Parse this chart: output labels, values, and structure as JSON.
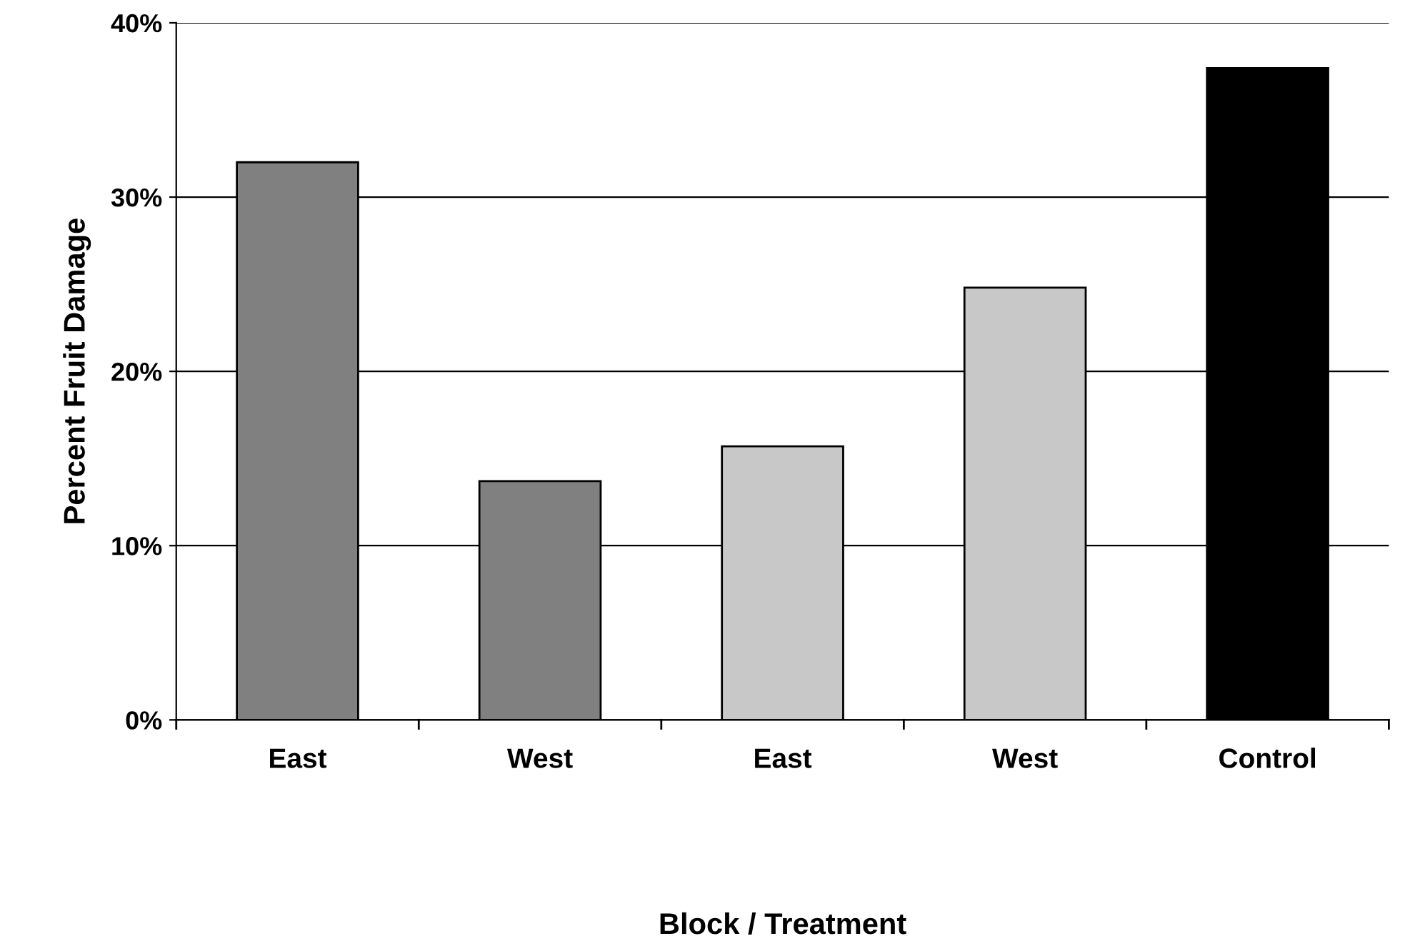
{
  "chart_data": {
    "type": "bar",
    "xlabel": "Block / Treatment",
    "ylabel": "Percent Fruit Damage",
    "categories": [
      "East",
      "West",
      "East",
      "West",
      "Control"
    ],
    "values": [
      32.0,
      13.7,
      15.7,
      24.8,
      37.4
    ],
    "colors": [
      "#808080",
      "#808080",
      "#c8c8c8",
      "#c8c8c8",
      "#000000"
    ],
    "ylim": [
      0,
      40
    ],
    "yticks": [
      {
        "value": 0,
        "label": "0%"
      },
      {
        "value": 10,
        "label": "10%"
      },
      {
        "value": 20,
        "label": "20%"
      },
      {
        "value": 30,
        "label": "30%"
      },
      {
        "value": 40,
        "label": "40%"
      }
    ],
    "grid": "y",
    "legend": false
  }
}
